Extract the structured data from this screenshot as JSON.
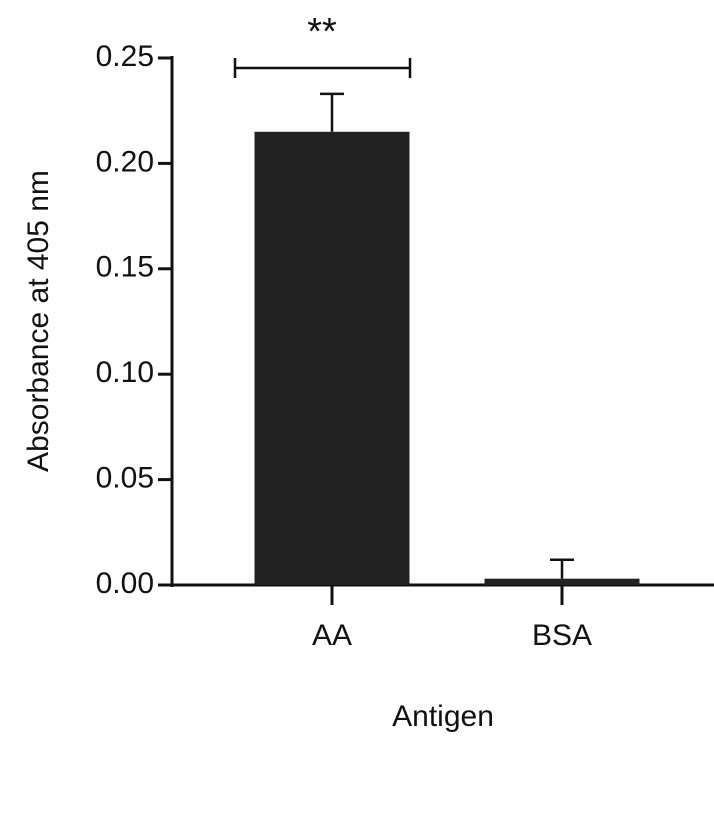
{
  "chart_data": {
    "type": "bar",
    "y_label": "Absorbance at 405 nm",
    "x_label": "Antigen",
    "categories": [
      "AA",
      "BSA"
    ],
    "values": [
      0.215,
      0.003
    ],
    "errors": [
      0.018,
      0.009
    ],
    "color": "#222222",
    "ylim": [
      0,
      0.25
    ],
    "yticks": [
      {
        "value": 0,
        "label": "0.00"
      },
      0.05,
      {
        "value": 0.1,
        "label": "0.10"
      },
      0.15,
      {
        "value": 0.2,
        "label": "0.20"
      },
      0.25
    ],
    "annotation": "**"
  }
}
